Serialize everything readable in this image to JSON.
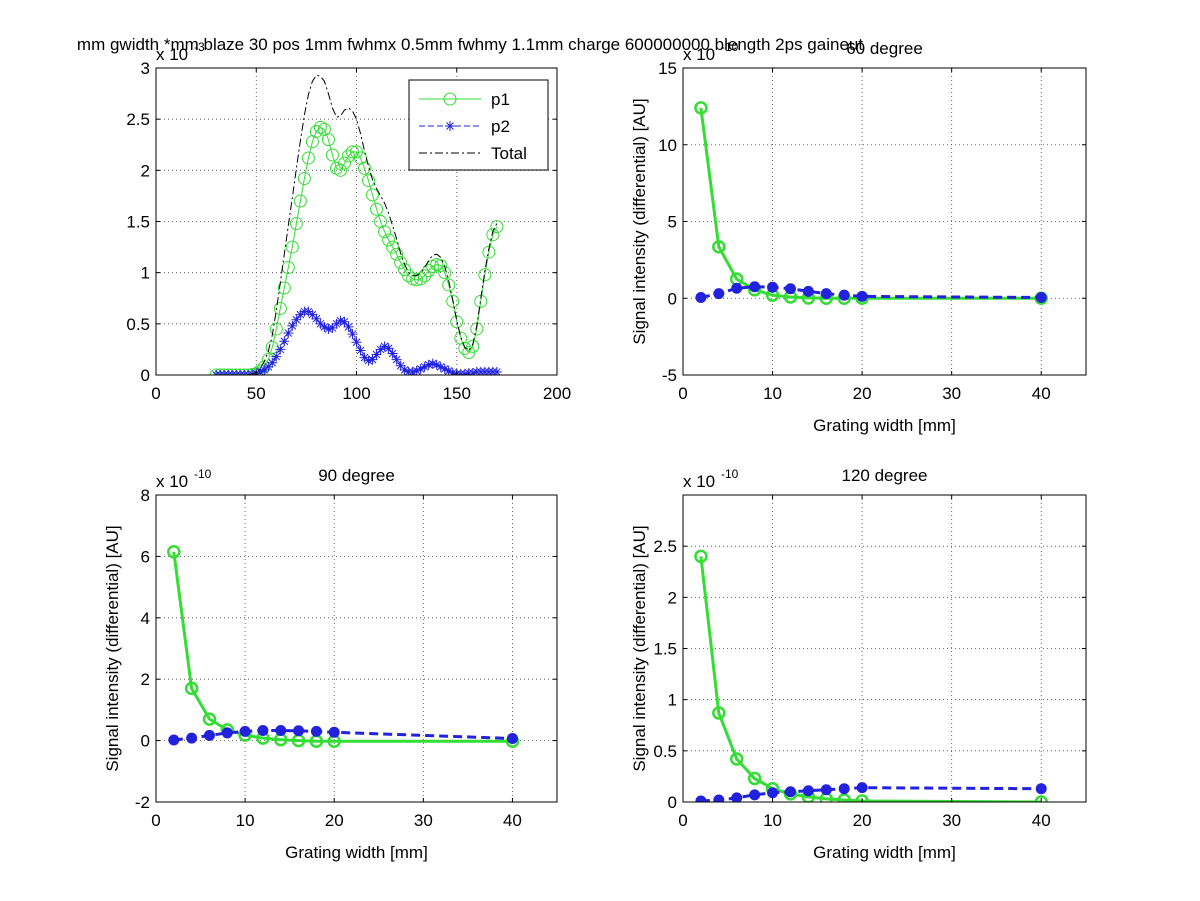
{
  "figure": {
    "suptitle": "mm gwidth *mm blaze 30 pos 1mm fwhmx 0.5mm fwhmy 1.1mm charge 600000000 blength 2ps gaineut"
  },
  "chart_data": [
    {
      "id": "p1",
      "type": "line",
      "title": "",
      "xlabel": "",
      "ylabel": "",
      "exponent_label": "x 10",
      "exponent_power": "-3",
      "xlim": [
        0,
        200
      ],
      "ylim": [
        0,
        3
      ],
      "xticks": [
        0,
        50,
        100,
        150,
        200
      ],
      "yticks": [
        0,
        0.5,
        1,
        1.5,
        2,
        2.5,
        3
      ],
      "grid": true,
      "legend": {
        "placement": "top-right",
        "entries": [
          "p1",
          "p2",
          "Total"
        ]
      },
      "series": [
        {
          "name": "p1",
          "color": "#33dd33",
          "marker": "circle",
          "x": [
            30,
            32,
            34,
            36,
            38,
            40,
            42,
            44,
            46,
            48,
            50,
            52,
            54,
            56,
            58,
            60,
            62,
            64,
            66,
            68,
            70,
            72,
            74,
            76,
            78,
            80,
            82,
            84,
            86,
            88,
            90,
            92,
            94,
            96,
            98,
            100,
            102,
            104,
            106,
            108,
            110,
            112,
            114,
            116,
            118,
            120,
            122,
            124,
            126,
            128,
            130,
            132,
            134,
            136,
            138,
            140,
            142,
            144,
            146,
            148,
            150,
            152,
            154,
            156,
            158,
            160,
            162,
            164,
            166,
            168,
            170
          ],
          "y": [
            0,
            0,
            0,
            0,
            0,
            0,
            0,
            0,
            0,
            0.005,
            0.015,
            0.04,
            0.08,
            0.15,
            0.27,
            0.45,
            0.65,
            0.85,
            1.05,
            1.25,
            1.48,
            1.7,
            1.92,
            2.12,
            2.28,
            2.38,
            2.42,
            2.4,
            2.3,
            2.15,
            2.02,
            2.0,
            2.07,
            2.14,
            2.18,
            2.18,
            2.12,
            2.02,
            1.9,
            1.76,
            1.62,
            1.5,
            1.4,
            1.32,
            1.25,
            1.18,
            1.1,
            1.03,
            0.97,
            0.94,
            0.93,
            0.94,
            0.97,
            1.02,
            1.06,
            1.08,
            1.07,
            1.0,
            0.88,
            0.72,
            0.52,
            0.36,
            0.26,
            0.22,
            0.28,
            0.45,
            0.72,
            0.98,
            1.2,
            1.37,
            1.45
          ]
        },
        {
          "name": "p2",
          "color": "#2222dd",
          "marker": "asterisk",
          "x": [
            30,
            32,
            34,
            36,
            38,
            40,
            42,
            44,
            46,
            48,
            50,
            52,
            54,
            56,
            58,
            60,
            62,
            64,
            66,
            68,
            70,
            72,
            74,
            76,
            78,
            80,
            82,
            84,
            86,
            88,
            90,
            92,
            94,
            96,
            98,
            100,
            102,
            104,
            106,
            108,
            110,
            112,
            114,
            116,
            118,
            120,
            122,
            124,
            126,
            128,
            130,
            132,
            134,
            136,
            138,
            140,
            142,
            144,
            146,
            148,
            150,
            152,
            154,
            156,
            158,
            160,
            162,
            164,
            166,
            168,
            170
          ],
          "y": [
            0,
            0,
            0,
            0,
            0,
            0,
            0,
            0,
            0,
            0.005,
            0.015,
            0.03,
            0.05,
            0.08,
            0.12,
            0.18,
            0.25,
            0.33,
            0.41,
            0.48,
            0.54,
            0.59,
            0.62,
            0.62,
            0.59,
            0.55,
            0.5,
            0.47,
            0.45,
            0.46,
            0.5,
            0.53,
            0.52,
            0.47,
            0.4,
            0.32,
            0.24,
            0.17,
            0.14,
            0.15,
            0.2,
            0.25,
            0.28,
            0.26,
            0.21,
            0.15,
            0.09,
            0.05,
            0.03,
            0.03,
            0.04,
            0.06,
            0.08,
            0.1,
            0.11,
            0.1,
            0.08,
            0.06,
            0.04,
            0.02,
            0.01,
            0.01,
            0.01,
            0.02,
            0.02,
            0.03,
            0.03,
            0.03,
            0.03,
            0.03,
            0.03
          ]
        },
        {
          "name": "Total",
          "color": "#000000",
          "marker": "none",
          "x": [
            30,
            32,
            34,
            36,
            38,
            40,
            42,
            44,
            46,
            48,
            50,
            52,
            54,
            56,
            58,
            60,
            62,
            64,
            66,
            68,
            70,
            72,
            74,
            76,
            78,
            80,
            82,
            84,
            86,
            88,
            90,
            92,
            94,
            96,
            98,
            100,
            102,
            104,
            106,
            108,
            110,
            112,
            114,
            116,
            118,
            120,
            122,
            124,
            126,
            128,
            130,
            132,
            134,
            136,
            138,
            140,
            142,
            144,
            146,
            148,
            150,
            152,
            154,
            156,
            158,
            160,
            162,
            164,
            166,
            168,
            170
          ],
          "y": [
            0,
            0,
            0,
            0,
            0,
            0,
            0,
            0,
            0,
            0.01,
            0.03,
            0.07,
            0.13,
            0.23,
            0.39,
            0.63,
            0.9,
            1.18,
            1.46,
            1.73,
            2.02,
            2.29,
            2.54,
            2.74,
            2.87,
            2.93,
            2.92,
            2.87,
            2.75,
            2.61,
            2.52,
            2.53,
            2.59,
            2.61,
            2.58,
            2.5,
            2.36,
            2.19,
            2.04,
            1.91,
            1.82,
            1.75,
            1.68,
            1.58,
            1.46,
            1.33,
            1.19,
            1.08,
            1.0,
            0.97,
            0.97,
            1.0,
            1.05,
            1.12,
            1.17,
            1.18,
            1.15,
            1.06,
            0.92,
            0.74,
            0.53,
            0.37,
            0.27,
            0.24,
            0.3,
            0.48,
            0.75,
            1.01,
            1.23,
            1.4,
            1.48
          ]
        }
      ]
    },
    {
      "id": "p2",
      "type": "line",
      "title": "60 degree",
      "xlabel": "Grating width [mm]",
      "ylabel": "Signal intensity (differential) [AU]",
      "exponent_label": "x 10",
      "exponent_power": "-10",
      "xlim": [
        0,
        45
      ],
      "ylim": [
        -5,
        15
      ],
      "xticks": [
        0,
        10,
        20,
        30,
        40
      ],
      "yticks": [
        -5,
        0,
        5,
        10,
        15
      ],
      "grid": true,
      "series": [
        {
          "color": "#33dd33",
          "marker": "circle",
          "x": [
            2,
            4,
            6,
            8,
            10,
            12,
            14,
            16,
            18,
            20,
            40
          ],
          "y": [
            12.4,
            3.35,
            1.25,
            0.55,
            0.2,
            0.08,
            0.02,
            0.0,
            0.0,
            0.0,
            0.0
          ]
        },
        {
          "color": "#2222dd",
          "marker": "dot",
          "x": [
            2,
            4,
            6,
            8,
            10,
            12,
            14,
            16,
            18,
            20,
            40
          ],
          "y": [
            0.05,
            0.3,
            0.65,
            0.75,
            0.72,
            0.62,
            0.45,
            0.3,
            0.2,
            0.12,
            0.05
          ]
        }
      ]
    },
    {
      "id": "p3",
      "type": "line",
      "title": "90 degree",
      "xlabel": "Grating width [mm]",
      "ylabel": "Signal intensity (differential) [AU]",
      "exponent_label": "x 10",
      "exponent_power": "-10",
      "xlim": [
        0,
        45
      ],
      "ylim": [
        -2,
        8
      ],
      "xticks": [
        0,
        10,
        20,
        30,
        40
      ],
      "yticks": [
        -2,
        0,
        2,
        4,
        6,
        8
      ],
      "grid": true,
      "series": [
        {
          "color": "#33dd33",
          "marker": "circle",
          "x": [
            2,
            4,
            6,
            8,
            10,
            12,
            14,
            16,
            18,
            20,
            40
          ],
          "y": [
            6.15,
            1.7,
            0.7,
            0.35,
            0.18,
            0.08,
            0.03,
            0.0,
            -0.02,
            -0.02,
            -0.02
          ]
        },
        {
          "color": "#2222dd",
          "marker": "dot",
          "x": [
            2,
            4,
            6,
            8,
            10,
            12,
            14,
            16,
            18,
            20,
            40
          ],
          "y": [
            0.02,
            0.08,
            0.17,
            0.25,
            0.3,
            0.33,
            0.33,
            0.32,
            0.3,
            0.27,
            0.07
          ]
        }
      ]
    },
    {
      "id": "p4",
      "type": "line",
      "title": "120 degree",
      "xlabel": "Grating width [mm]",
      "ylabel": "Signal intensity (differential) [AU]",
      "exponent_label": "x 10",
      "exponent_power": "-10",
      "xlim": [
        0,
        45
      ],
      "ylim": [
        0,
        3
      ],
      "xticks": [
        0,
        10,
        20,
        30,
        40
      ],
      "yticks": [
        0,
        0.5,
        1,
        1.5,
        2,
        2.5
      ],
      "grid": true,
      "series": [
        {
          "color": "#33dd33",
          "marker": "circle",
          "x": [
            2,
            4,
            6,
            8,
            10,
            12,
            14,
            16,
            18,
            20,
            40
          ],
          "y": [
            2.4,
            0.87,
            0.42,
            0.23,
            0.13,
            0.08,
            0.05,
            0.03,
            0.02,
            0.01,
            0.0
          ]
        },
        {
          "color": "#2222dd",
          "marker": "dot",
          "x": [
            2,
            4,
            6,
            8,
            10,
            12,
            14,
            16,
            18,
            20,
            40
          ],
          "y": [
            0.01,
            0.02,
            0.04,
            0.07,
            0.09,
            0.1,
            0.11,
            0.12,
            0.13,
            0.14,
            0.13
          ]
        }
      ]
    }
  ]
}
